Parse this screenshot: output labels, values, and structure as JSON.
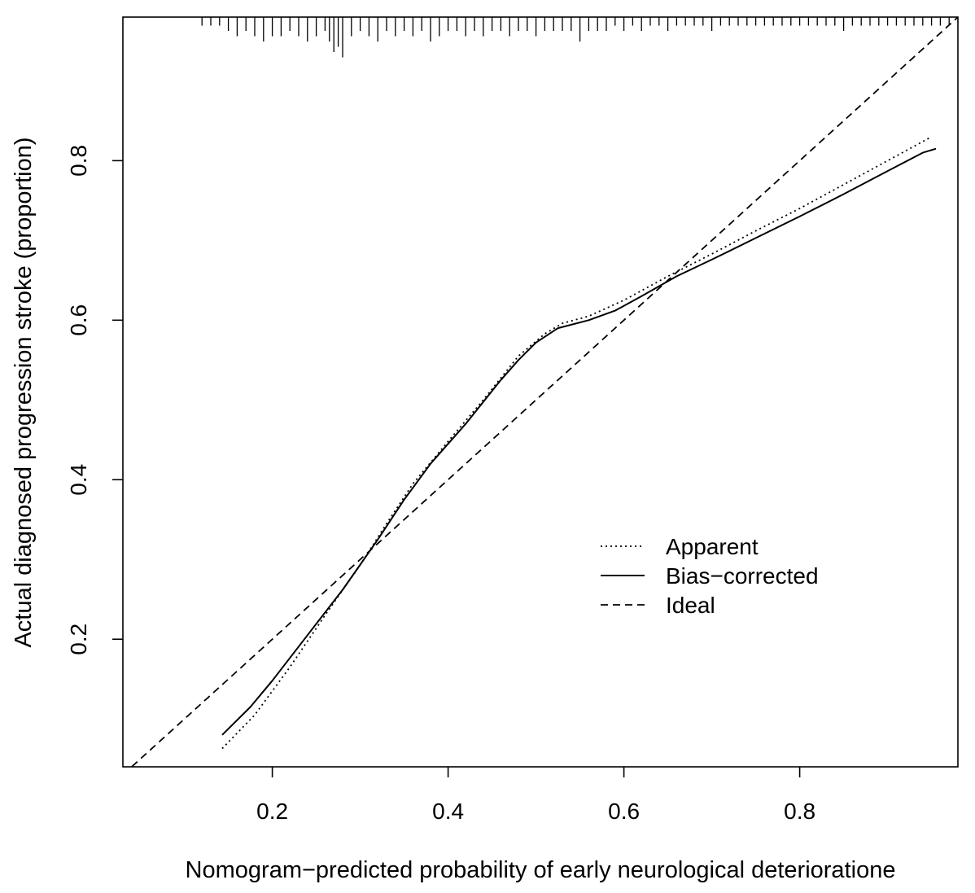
{
  "chart_data": {
    "type": "line",
    "xlabel": "Nomogram−predicted probability of early neurological deterioratione",
    "ylabel": "Actual diagnosed progression stroke (proportion)",
    "xlim": [
      0.03,
      0.98
    ],
    "ylim": [
      0.04,
      0.98
    ],
    "x_ticks": [
      0.2,
      0.4,
      0.6,
      0.8
    ],
    "y_ticks": [
      0.2,
      0.4,
      0.6,
      0.8
    ],
    "x_tick_labels": [
      "0.2",
      "0.4",
      "0.6",
      "0.8"
    ],
    "y_tick_labels": [
      "0.2",
      "0.4",
      "0.6",
      "0.8"
    ],
    "grid": false,
    "legend_position": "center-right",
    "series": [
      {
        "name": "Apparent",
        "style": "dotted",
        "x": [
          0.143,
          0.18,
          0.22,
          0.26,
          0.3,
          0.33,
          0.36,
          0.4,
          0.44,
          0.48,
          0.51,
          0.53,
          0.56,
          0.6,
          0.65,
          0.7,
          0.75,
          0.8,
          0.85,
          0.9,
          0.95
        ],
        "y": [
          0.063,
          0.105,
          0.165,
          0.23,
          0.293,
          0.345,
          0.395,
          0.448,
          0.5,
          0.555,
          0.583,
          0.596,
          0.605,
          0.625,
          0.655,
          0.683,
          0.712,
          0.74,
          0.77,
          0.8,
          0.83
        ]
      },
      {
        "name": "Bias−corrected",
        "style": "solid",
        "x": [
          0.143,
          0.175,
          0.2,
          0.24,
          0.28,
          0.32,
          0.35,
          0.38,
          0.42,
          0.46,
          0.48,
          0.5,
          0.525,
          0.56,
          0.59,
          0.62,
          0.66,
          0.7,
          0.75,
          0.8,
          0.85,
          0.9,
          0.94,
          0.955
        ],
        "y": [
          0.08,
          0.115,
          0.148,
          0.205,
          0.262,
          0.325,
          0.375,
          0.42,
          0.47,
          0.525,
          0.55,
          0.572,
          0.59,
          0.6,
          0.612,
          0.63,
          0.655,
          0.676,
          0.703,
          0.73,
          0.758,
          0.787,
          0.81,
          0.815
        ]
      },
      {
        "name": "Ideal",
        "style": "dashed",
        "x": [
          0.03,
          0.98
        ],
        "y": [
          0.03,
          0.98
        ]
      }
    ],
    "rug": {
      "x": [
        0.12,
        0.13,
        0.14,
        0.15,
        0.16,
        0.17,
        0.18,
        0.19,
        0.2,
        0.21,
        0.22,
        0.23,
        0.24,
        0.25,
        0.26,
        0.265,
        0.27,
        0.275,
        0.28,
        0.29,
        0.3,
        0.31,
        0.32,
        0.33,
        0.34,
        0.35,
        0.36,
        0.37,
        0.38,
        0.39,
        0.4,
        0.41,
        0.42,
        0.43,
        0.44,
        0.45,
        0.46,
        0.47,
        0.48,
        0.49,
        0.5,
        0.51,
        0.52,
        0.53,
        0.54,
        0.55,
        0.56,
        0.57,
        0.58,
        0.59,
        0.6,
        0.61,
        0.62,
        0.63,
        0.64,
        0.65,
        0.66,
        0.67,
        0.68,
        0.69,
        0.7,
        0.71,
        0.72,
        0.73,
        0.74,
        0.75,
        0.76,
        0.77,
        0.78,
        0.79,
        0.8,
        0.81,
        0.82,
        0.83,
        0.84,
        0.85,
        0.86,
        0.87,
        0.88,
        0.89,
        0.9,
        0.91,
        0.92,
        0.93,
        0.94,
        0.95,
        0.96,
        0.97
      ],
      "counts": [
        1,
        1,
        1,
        2,
        3,
        2,
        3,
        4,
        3,
        3,
        2,
        3,
        4,
        3,
        2,
        4,
        6,
        5,
        7,
        3,
        2,
        3,
        4,
        2,
        3,
        2,
        3,
        2,
        4,
        3,
        2,
        2,
        3,
        2,
        3,
        2,
        2,
        3,
        2,
        2,
        3,
        2,
        2,
        2,
        2,
        4,
        2,
        2,
        2,
        1,
        2,
        1,
        2,
        1,
        1,
        2,
        1,
        1,
        1,
        1,
        2,
        1,
        1,
        1,
        1,
        1,
        1,
        1,
        1,
        1,
        1,
        1,
        1,
        1,
        1,
        2,
        1,
        1,
        1,
        1,
        1,
        1,
        1,
        1,
        1,
        1,
        1,
        1
      ]
    }
  }
}
